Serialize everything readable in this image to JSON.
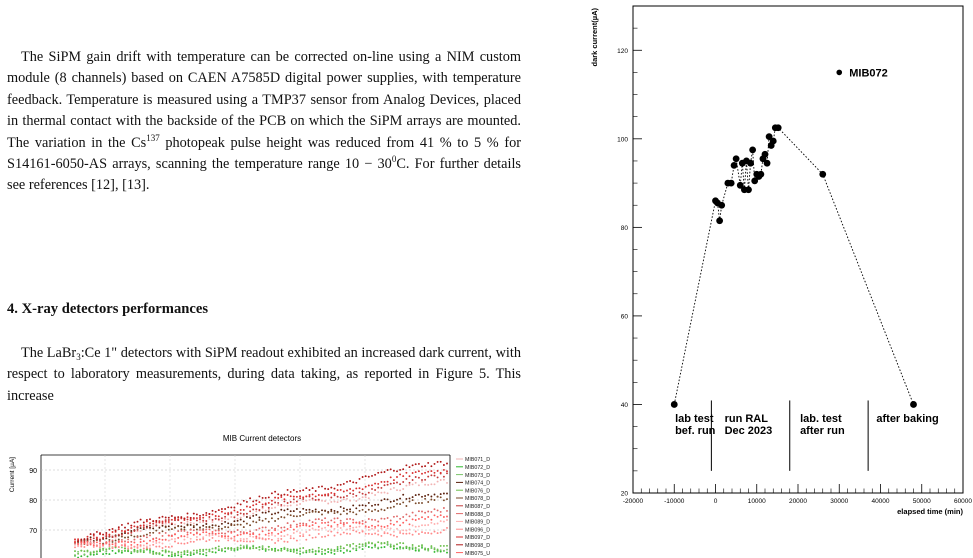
{
  "text": {
    "para1": [
      {
        "t": "The SiPM gain drift with temperature can be corrected on-line using a NIM custom module (8 channels) based on CAEN A7585D digital power supplies, with temperature feedback. Temperature is measured using a TMP37 sensor from Analog Devices, placed in thermal contact with the backside of the PCB on which the SiPM arrays are mounted. The variation in the Cs"
      },
      {
        "t": "137",
        "style": "sup"
      },
      {
        "t": " photopeak pulse height was reduced from 41 % to 5 % for S14161-6050-AS arrays, scanning the temperature range 10 − 30"
      },
      {
        "t": "0",
        "style": "sup"
      },
      {
        "t": "C. For further details see references [12], [13]."
      }
    ],
    "heading": "4.  X-ray detectors performances",
    "para2": [
      {
        "t": "The LaBr"
      },
      {
        "t": "3",
        "style": "sub"
      },
      {
        "t": ":Ce 1\" detectors with SiPM readout exhibited an increased dark current, with respect to laboratory measurements, during data taking, as reported in Figure 5. This increase"
      }
    ]
  },
  "colors": {
    "MIB071_D": "#f2b3b3",
    "MIB072_D": "#2db82d",
    "MIB073_D": "#7ac46a",
    "MIB074_D": "#5a1f0c",
    "MIB076_D": "#6bbf4a",
    "MIB078_D": "#7a4a2a",
    "MIB087_D": "#c43a3a",
    "MIB088_D": "#e06a6a",
    "MIB089_D": "#ffb0b0",
    "MIB096_D": "#ff8a8a",
    "MIB097_D": "#d93030",
    "MIB098_D": "#b01818",
    "MIB075_U": "#ff6060"
  },
  "chart_data": [
    {
      "type": "scatter",
      "title": "MIB Current detectors",
      "ylabel": "Current [µA]",
      "xlabel": "",
      "ylim": [
        60,
        95
      ],
      "y_ticks": [
        70,
        80,
        90
      ],
      "grid": true,
      "legend_placement": "right",
      "series": [
        {
          "name": "MIB071_D",
          "start": 66.5,
          "end": 86
        },
        {
          "name": "MIB072_D",
          "start": 62,
          "end": 64
        },
        {
          "name": "MIB073_D",
          "start": 62.5,
          "end": 64.5
        },
        {
          "name": "MIB074_D",
          "start": 67,
          "end": 82
        },
        {
          "name": "MIB076_D",
          "start": 62.5,
          "end": 65
        },
        {
          "name": "MIB078_D",
          "start": 66,
          "end": 80
        },
        {
          "name": "MIB087_D",
          "start": 66.5,
          "end": 88
        },
        {
          "name": "MIB088_D",
          "start": 65.5,
          "end": 76
        },
        {
          "name": "MIB089_D",
          "start": 64.5,
          "end": 72
        },
        {
          "name": "MIB096_D",
          "start": 64,
          "end": 70
        },
        {
          "name": "MIB097_D",
          "start": 67,
          "end": 90
        },
        {
          "name": "MIB098_D",
          "start": 67.5,
          "end": 93
        },
        {
          "name": "MIB075_U",
          "start": 65,
          "end": 74
        }
      ]
    },
    {
      "type": "line",
      "title": "",
      "xlabel": "elapsed time (min)",
      "ylabel": "dark current(µA)",
      "xlim": [
        -20000,
        60000
      ],
      "ylim": [
        20,
        130
      ],
      "x_ticks": [
        -20000,
        -10000,
        0,
        10000,
        20000,
        30000,
        40000,
        50000,
        60000
      ],
      "x_tick_labels": [
        "-20000",
        "-10000",
        "0",
        "10000",
        "20000",
        "30000",
        "40000",
        "50000",
        "60000"
      ],
      "y_ticks": [
        20,
        40,
        60,
        80,
        100,
        120
      ],
      "y_tick_labels": [
        "20",
        "40",
        "60",
        "80",
        "100",
        "120"
      ],
      "points": [
        {
          "x": -10000,
          "y": 40
        },
        {
          "x": 0,
          "y": 86
        },
        {
          "x": 500,
          "y": 85.5
        },
        {
          "x": 1000,
          "y": 81.5
        },
        {
          "x": 1500,
          "y": 85
        },
        {
          "x": 3000,
          "y": 90
        },
        {
          "x": 3800,
          "y": 90
        },
        {
          "x": 4500,
          "y": 94
        },
        {
          "x": 5000,
          "y": 95.5
        },
        {
          "x": 6000,
          "y": 89.5
        },
        {
          "x": 6500,
          "y": 94.5
        },
        {
          "x": 7000,
          "y": 88.5
        },
        {
          "x": 7500,
          "y": 95
        },
        {
          "x": 8000,
          "y": 88.5
        },
        {
          "x": 8500,
          "y": 94.5
        },
        {
          "x": 9000,
          "y": 97.5
        },
        {
          "x": 9500,
          "y": 90.5
        },
        {
          "x": 10000,
          "y": 92
        },
        {
          "x": 10500,
          "y": 91.5
        },
        {
          "x": 11000,
          "y": 92
        },
        {
          "x": 11500,
          "y": 95.5
        },
        {
          "x": 12000,
          "y": 96.5
        },
        {
          "x": 12500,
          "y": 94.5
        },
        {
          "x": 13000,
          "y": 100.5
        },
        {
          "x": 13500,
          "y": 98.5
        },
        {
          "x": 14000,
          "y": 99.5
        },
        {
          "x": 14500,
          "y": 102.5
        },
        {
          "x": 15200,
          "y": 102.5
        },
        {
          "x": 26000,
          "y": 92
        },
        {
          "x": 48000,
          "y": 40
        }
      ],
      "marker_point": {
        "x": 30000,
        "y": 115,
        "label": "MIB072"
      },
      "phase_separators_x": [
        -1000,
        18000,
        37000
      ],
      "phase_labels": [
        {
          "x": -9800,
          "lines": [
            "lab test",
            "bef. run"
          ]
        },
        {
          "x": 2200,
          "lines": [
            "run RAL",
            "Dec 2023"
          ]
        },
        {
          "x": 20500,
          "lines": [
            "lab. test",
            "after run"
          ]
        },
        {
          "x": 39000,
          "lines": [
            "after baking"
          ]
        }
      ]
    }
  ]
}
